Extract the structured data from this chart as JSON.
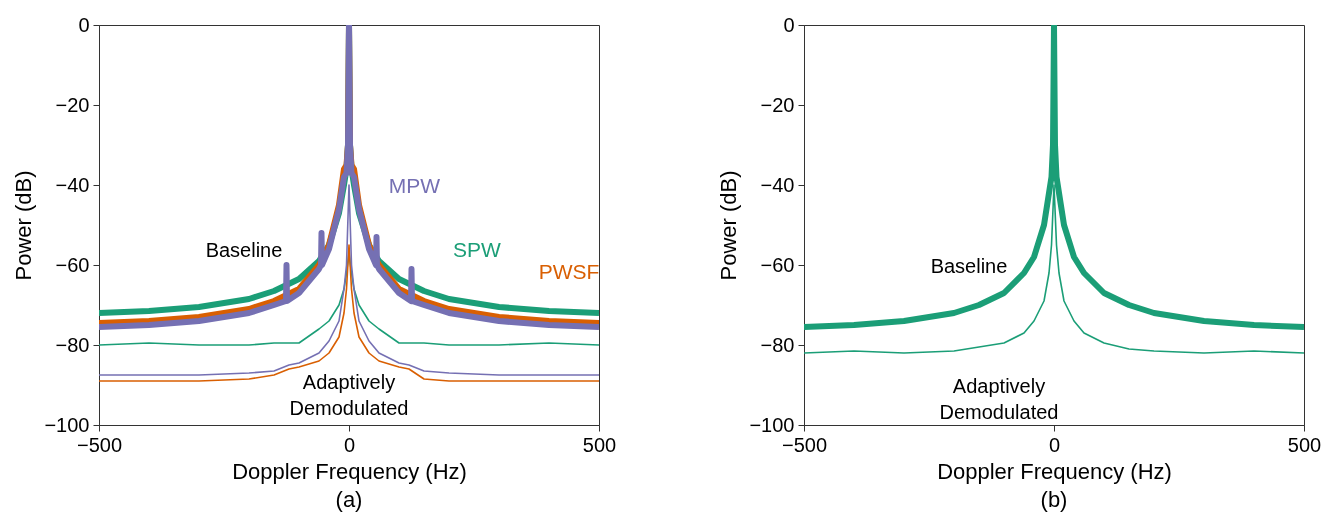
{
  "chart_data": [
    {
      "type": "line",
      "title": "(a)",
      "xlabel": "Doppler Frequency (Hz)",
      "ylabel": "Power (dB)",
      "xlim": [
        -500,
        500
      ],
      "xticks": [
        -500,
        0,
        500
      ],
      "ylim": [
        -100,
        0
      ],
      "yticks": [
        0,
        -20,
        -40,
        -60,
        -80,
        -100
      ],
      "series": [
        {
          "name": "SPW",
          "color": "#1b9e77",
          "x": [
            -500,
            -400,
            -300,
            -200,
            -150,
            -100,
            -60,
            -40,
            -20,
            -10,
            -5,
            -2,
            0,
            2,
            5,
            10,
            20,
            40,
            60,
            100,
            150,
            200,
            300,
            400,
            500
          ],
          "values": [
            -72,
            -71.5,
            -70.5,
            -68.5,
            -66.5,
            -63.5,
            -59,
            -55,
            -47,
            -40,
            -36,
            -30,
            0,
            -30,
            -36,
            -40,
            -47,
            -55,
            -59,
            -63.5,
            -66.5,
            -68.5,
            -70.5,
            -71.5,
            -72
          ]
        },
        {
          "name": "PWSF",
          "color": "#d95f02",
          "x": [
            -500,
            -400,
            -300,
            -200,
            -150,
            -100,
            -60,
            -40,
            -20,
            -10,
            -5,
            -2,
            0,
            2,
            5,
            10,
            20,
            40,
            60,
            100,
            150,
            200,
            300,
            400,
            500
          ],
          "values": [
            -74.5,
            -74,
            -73,
            -71,
            -69,
            -66,
            -60,
            -55,
            -45,
            -36,
            -35,
            -30,
            0,
            -30,
            -35,
            -36,
            -45,
            -55,
            -60,
            -66,
            -69,
            -71,
            -73,
            -74,
            -74.5
          ]
        },
        {
          "name": "MPW",
          "color": "#7570b3",
          "x": [
            -500,
            -400,
            -300,
            -200,
            -150,
            -126,
            -125,
            -124,
            -100,
            -60,
            -56,
            -55,
            -54,
            -40,
            -20,
            -10,
            -5,
            -2,
            0,
            2,
            5,
            10,
            20,
            40,
            54,
            55,
            56,
            60,
            100,
            124,
            125,
            126,
            150,
            200,
            300,
            400,
            500
          ],
          "values": [
            -75.5,
            -75,
            -74,
            -72,
            -70,
            -69,
            -60,
            -69,
            -67,
            -61,
            -60,
            -52,
            -60,
            -56,
            -46,
            -38,
            -37,
            -30,
            0,
            -30,
            -37,
            -38,
            -46,
            -56,
            -60,
            -53,
            -60,
            -61,
            -67,
            -69,
            -61,
            -69,
            -70,
            -72,
            -74,
            -75,
            -75.5
          ]
        },
        {
          "color": "#1b9e77",
          "x": [
            -500,
            -400,
            -300,
            -200,
            -150,
            -100,
            -60,
            -40,
            -20,
            -10,
            -5,
            0,
            5,
            10,
            20,
            40,
            60,
            100,
            150,
            200,
            300,
            400,
            500
          ],
          "values": [
            -80,
            -79.5,
            -80,
            -80,
            -79.5,
            -79.5,
            -76,
            -74,
            -70,
            -66,
            -62,
            -57,
            -62,
            -66,
            -70,
            -74,
            -76,
            -79.5,
            -79.5,
            -80,
            -80,
            -79.5,
            -80
          ]
        },
        {
          "color": "#d95f02",
          "x": [
            -500,
            -400,
            -300,
            -200,
            -150,
            -120,
            -100,
            -60,
            -40,
            -20,
            -10,
            -5,
            0,
            5,
            10,
            20,
            40,
            60,
            100,
            120,
            150,
            200,
            300,
            400,
            500
          ],
          "values": [
            -89,
            -89,
            -89,
            -88.5,
            -87.5,
            -86,
            -85.5,
            -84,
            -82,
            -78,
            -72,
            -66,
            -55,
            -66,
            -72,
            -78,
            -82,
            -84,
            -85.5,
            -86,
            -88.5,
            -89,
            -89,
            -89,
            -89
          ]
        },
        {
          "color": "#7570b3",
          "x": [
            -500,
            -400,
            -300,
            -200,
            -150,
            -120,
            -100,
            -60,
            -40,
            -20,
            -10,
            -5,
            0,
            5,
            10,
            20,
            40,
            60,
            100,
            120,
            150,
            200,
            300,
            400,
            500
          ],
          "values": [
            -87.5,
            -87.5,
            -87.5,
            -87,
            -86.5,
            -85,
            -84.5,
            -82,
            -79,
            -74,
            -66,
            -60,
            -40,
            -60,
            -66,
            -74,
            -79,
            -82,
            -84.5,
            -85,
            -86.5,
            -87,
            -87.5,
            -87.5,
            -87.5
          ]
        }
      ],
      "annotations": [
        "Baseline",
        "Adaptively\nDemodulated"
      ]
    },
    {
      "type": "line",
      "title": "(b)",
      "xlabel": "Doppler Frequency (Hz)",
      "ylabel": "Power (dB)",
      "xlim": [
        -500,
        500
      ],
      "xticks": [
        -500,
        0,
        500
      ],
      "ylim": [
        -100,
        0
      ],
      "yticks": [
        0,
        -20,
        -40,
        -60,
        -80,
        -100
      ],
      "series": [
        {
          "color": "#1b9e77",
          "x": [
            -500,
            -400,
            -300,
            -200,
            -150,
            -100,
            -60,
            -40,
            -20,
            -10,
            -5,
            -2,
            0,
            2,
            5,
            10,
            20,
            40,
            60,
            100,
            150,
            200,
            300,
            400,
            500
          ],
          "values": [
            -75.5,
            -75,
            -74,
            -72,
            -70,
            -67,
            -62,
            -58,
            -50,
            -42,
            -38,
            -30,
            0,
            -30,
            -38,
            -42,
            -50,
            -58,
            -62,
            -67,
            -70,
            -72,
            -74,
            -75,
            -75.5
          ]
        },
        {
          "color": "#1b9e77",
          "x": [
            -500,
            -400,
            -300,
            -200,
            -150,
            -100,
            -60,
            -40,
            -20,
            -10,
            -5,
            0,
            5,
            10,
            20,
            40,
            60,
            100,
            150,
            200,
            300,
            400,
            500
          ],
          "values": [
            -82,
            -81.5,
            -82,
            -81.5,
            -80.5,
            -79.5,
            -77,
            -74,
            -69,
            -62,
            -55,
            -40,
            -55,
            -62,
            -69,
            -74,
            -77,
            -79.5,
            -81,
            -81.5,
            -82,
            -81.5,
            -82
          ]
        }
      ],
      "annotations": [
        "Baseline",
        "Adaptively\nDemodulated"
      ]
    }
  ]
}
